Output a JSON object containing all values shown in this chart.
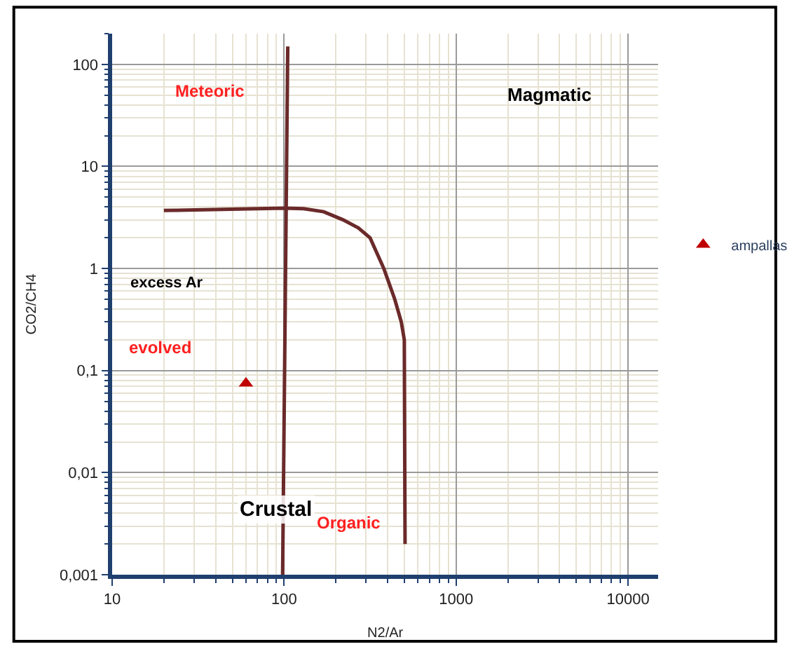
{
  "chart_data": {
    "type": "line",
    "xlabel": "N2/Ar",
    "ylabel": "CO2/CH4",
    "log": "xy",
    "grid": true,
    "legend": "right",
    "xlim": [
      10,
      15000
    ],
    "xticks": [
      10,
      100,
      1000,
      10000
    ],
    "ylim": [
      0.001,
      200
    ],
    "yticks": [
      {
        "value": 0.001,
        "label": "0,001"
      },
      {
        "value": 0.01,
        "label": "0,01"
      },
      {
        "value": 0.1,
        "label": "0,1"
      },
      1,
      10,
      100
    ],
    "series": [
      {
        "color": "#6b2a2a",
        "marker": "none",
        "x": [
          98,
          105
        ],
        "values": [
          0.001,
          150
        ]
      },
      {
        "color": "#6b2a2a",
        "marker": "none",
        "x": [
          20,
          100,
          130,
          170,
          220,
          270,
          316,
          380,
          440,
          480,
          500,
          505
        ],
        "values": [
          3.7,
          3.9,
          3.85,
          3.6,
          3.0,
          2.5,
          2.0,
          1.0,
          0.5,
          0.3,
          0.2,
          0.002
        ]
      },
      {
        "type": "scatter",
        "name": "ampallas",
        "color": "#c00000",
        "marker": "triangle",
        "x": [
          60
        ],
        "values": [
          0.075
        ]
      }
    ],
    "annotations": [
      "Meteoric",
      "Magmatic",
      "excess Ar",
      "evolved",
      "Crustal",
      "Organic"
    ]
  }
}
